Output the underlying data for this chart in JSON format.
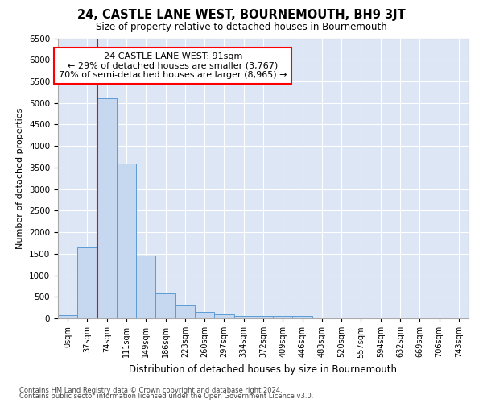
{
  "title": "24, CASTLE LANE WEST, BOURNEMOUTH, BH9 3JT",
  "subtitle": "Size of property relative to detached houses in Bournemouth",
  "xlabel": "Distribution of detached houses by size in Bournemouth",
  "ylabel": "Number of detached properties",
  "bar_color": "#c5d8f0",
  "bar_edge_color": "#5b9bd5",
  "background_color": "#dce6f5",
  "grid_color": "#ffffff",
  "fig_background": "#ffffff",
  "bins": [
    "0sqm",
    "37sqm",
    "74sqm",
    "111sqm",
    "149sqm",
    "186sqm",
    "223sqm",
    "260sqm",
    "297sqm",
    "334sqm",
    "372sqm",
    "409sqm",
    "446sqm",
    "483sqm",
    "520sqm",
    "557sqm",
    "594sqm",
    "632sqm",
    "669sqm",
    "706sqm",
    "743sqm"
  ],
  "values": [
    75,
    1650,
    5100,
    3600,
    1450,
    580,
    300,
    150,
    100,
    50,
    50,
    50,
    50,
    0,
    0,
    0,
    0,
    0,
    0,
    0,
    0
  ],
  "red_line_x": 2.0,
  "annotation_text": "24 CASTLE LANE WEST: 91sqm\n← 29% of detached houses are smaller (3,767)\n70% of semi-detached houses are larger (8,965) →",
  "ylim": [
    0,
    6500
  ],
  "yticks": [
    0,
    500,
    1000,
    1500,
    2000,
    2500,
    3000,
    3500,
    4000,
    4500,
    5000,
    5500,
    6000,
    6500
  ],
  "footer_line1": "Contains HM Land Registry data © Crown copyright and database right 2024.",
  "footer_line2": "Contains public sector information licensed under the Open Government Licence v3.0."
}
